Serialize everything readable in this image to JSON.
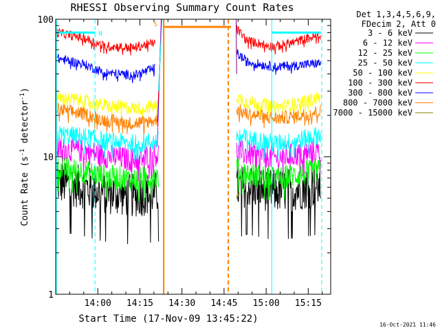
{
  "chart_data": {
    "type": "line",
    "title": "RHESSI Observing Summary Count Rates",
    "xlabel": "Start Time (17-Nov-09 13:45:22)",
    "ylabel_main": "Count Rate (s",
    "ylabel_sup1": "-1",
    "ylabel_mid": " detector",
    "ylabel_sup2": "-1",
    "ylabel_end": ")",
    "y_scale": "log",
    "ylim": [
      1,
      100
    ],
    "x_start_minutes": 0,
    "x_end_minutes": 98,
    "x_ticks": [
      {
        "t": 15,
        "label": "14:00"
      },
      {
        "t": 30,
        "label": "14:15"
      },
      {
        "t": 45,
        "label": "14:30"
      },
      {
        "t": 60,
        "label": "14:45"
      },
      {
        "t": 75,
        "label": "15:00"
      },
      {
        "t": 90,
        "label": "15:15"
      }
    ],
    "y_ticks": [
      {
        "v": 1,
        "label": "1"
      },
      {
        "v": 10,
        "label": "10"
      },
      {
        "v": 100,
        "label": "100"
      }
    ],
    "legend": {
      "placement": "right",
      "header": [
        "Det 1,3,4,5,6,9,",
        "FDecim 2, Att 0"
      ],
      "entries": [
        {
          "label": "3 - 6 keV",
          "color": "#000000"
        },
        {
          "label": "6 - 12 keV",
          "color": "#ff00ff"
        },
        {
          "label": "12 - 25 keV",
          "color": "#00ff00"
        },
        {
          "label": "25 - 50 keV",
          "color": "#00ffff"
        },
        {
          "label": "50 - 100 keV",
          "color": "#ffff00"
        },
        {
          "label": "100 - 300 keV",
          "color": "#ff0000"
        },
        {
          "label": "300 - 800 keV",
          "color": "#0000ff"
        },
        {
          "label": "800 - 7000 keV",
          "color": "#ff8000"
        },
        {
          "label": "7000 - 15000 keV",
          "color": "#808000"
        }
      ]
    },
    "series": [
      {
        "name": "3 - 6 keV",
        "color": "#000000",
        "noise": 0.16,
        "segments": [
          {
            "x": [
              0.5,
              10,
              17,
              28,
              36.8
            ],
            "y": [
              6.5,
              6.0,
              5.5,
              5.2,
              5.5
            ]
          },
          {
            "x": [
              64.5,
              68,
              78,
              85,
              94.5
            ],
            "y": [
              5.8,
              6.2,
              5.6,
              5.8,
              6.2
            ]
          }
        ]
      },
      {
        "name": "6 - 12 keV",
        "color": "#ff00ff",
        "noise": 0.09,
        "segments": [
          {
            "x": [
              0.5,
              10,
              17,
              28,
              36.8
            ],
            "y": [
              11.5,
              11.0,
              10.2,
              9.5,
              10.5
            ]
          },
          {
            "x": [
              64.5,
              68,
              78,
              85,
              94.5
            ],
            "y": [
              11.0,
              10.5,
              9.8,
              10.3,
              11.0
            ]
          }
        ]
      },
      {
        "name": "12 - 25 keV",
        "color": "#00ff00",
        "noise": 0.09,
        "segments": [
          {
            "x": [
              0.5,
              10,
              17,
              28,
              36.8
            ],
            "y": [
              8.2,
              7.8,
              7.2,
              6.8,
              7.2
            ]
          },
          {
            "x": [
              64.5,
              68,
              78,
              85,
              94.5
            ],
            "y": [
              8.0,
              7.5,
              6.9,
              7.3,
              8.0
            ]
          }
        ]
      },
      {
        "name": "25 - 50 keV",
        "color": "#00ffff",
        "noise": 0.07,
        "segments": [
          {
            "x": [
              0.5,
              10,
              17,
              28,
              36.8
            ],
            "y": [
              14.5,
              14.0,
              13.0,
              12.5,
              13.0
            ]
          },
          {
            "x": [
              64.5,
              68,
              78,
              85,
              94.5
            ],
            "y": [
              14.5,
              13.5,
              12.5,
              13.0,
              14.5
            ]
          }
        ]
      },
      {
        "name": "50 - 100 keV",
        "color": "#ffff00",
        "noise": 0.05,
        "segments": [
          {
            "x": [
              0.5,
              10,
              17,
              28,
              36.8
            ],
            "y": [
              27,
              25.5,
              23.5,
              22.5,
              23.5
            ]
          },
          {
            "x": [
              64.5,
              68,
              78,
              85,
              94.5
            ],
            "y": [
              27,
              25,
              23,
              24,
              27
            ]
          }
        ]
      },
      {
        "name": "100 - 300 keV",
        "color": "#ff0000",
        "noise": 0.035,
        "segments": [
          {
            "x": [
              0.5,
              10,
              17,
              28,
              35.5
            ],
            "y": [
              80,
              73,
              64,
              62,
              68
            ]
          },
          {
            "x": [
              64.5,
              68,
              78,
              85,
              94.5
            ],
            "y": [
              85,
              70,
              63,
              68,
              77
            ]
          }
        ]
      },
      {
        "name": "300 - 800 keV",
        "color": "#0000ff",
        "noise": 0.035,
        "segments": [
          {
            "x": [
              0.5,
              10,
              17,
              28,
              35.5
            ],
            "y": [
              52,
              47,
              41,
              39,
              44
            ]
          },
          {
            "x": [
              64.5,
              68,
              78,
              85,
              94.5
            ],
            "y": [
              57,
              49,
              45,
              46,
              48
            ]
          }
        ]
      },
      {
        "name": "800 - 7000 keV",
        "color": "#ff8000",
        "noise": 0.05,
        "segments": [
          {
            "x": [
              0.5,
              10,
              17,
              28,
              36.8
            ],
            "y": [
              22,
              20.5,
              18.5,
              17.5,
              18.5
            ]
          },
          {
            "x": [
              64.5,
              68,
              78,
              85,
              94.5
            ],
            "y": [
              22,
              20.5,
              19.0,
              19.5,
              21.5
            ]
          }
        ]
      },
      {
        "name": "7000 - 15000 keV",
        "color": "#808000",
        "noise": 0.03,
        "segments": [
          {
            "x": [
              64.5,
              65.5
            ],
            "y": [
              5.0,
              5.5
            ]
          }
        ]
      }
    ],
    "vertical_lines": [
      {
        "t": 0.3,
        "color": "#00ffff",
        "style": "solid"
      },
      {
        "t": 14.0,
        "color": "#00ffff",
        "style": "dashed"
      },
      {
        "t": 38.5,
        "color": "#ff8000",
        "style": "solid"
      },
      {
        "t": 61.5,
        "color": "#ff8000",
        "style": "dashed"
      },
      {
        "t": 77.0,
        "color": "#00ffff",
        "style": "solid"
      },
      {
        "t": 94.8,
        "color": "#00ffff",
        "style": "dashed"
      }
    ],
    "flag_bars": [
      {
        "t0": 0.5,
        "t1": 14,
        "y": 80,
        "color": "#00ffff",
        "label": "N"
      },
      {
        "t0": 77,
        "t1": 94.5,
        "y": 80,
        "color": "#00ffff",
        "label": ""
      },
      {
        "t0": 38.8,
        "t1": 62.5,
        "y": 88,
        "color": "#ff8000",
        "label": ""
      }
    ],
    "annotations": [
      {
        "t": 35.6,
        "y": 92,
        "label": "S",
        "color": "#ff8000"
      }
    ],
    "footer": "16-Oct-2021 11:46"
  }
}
